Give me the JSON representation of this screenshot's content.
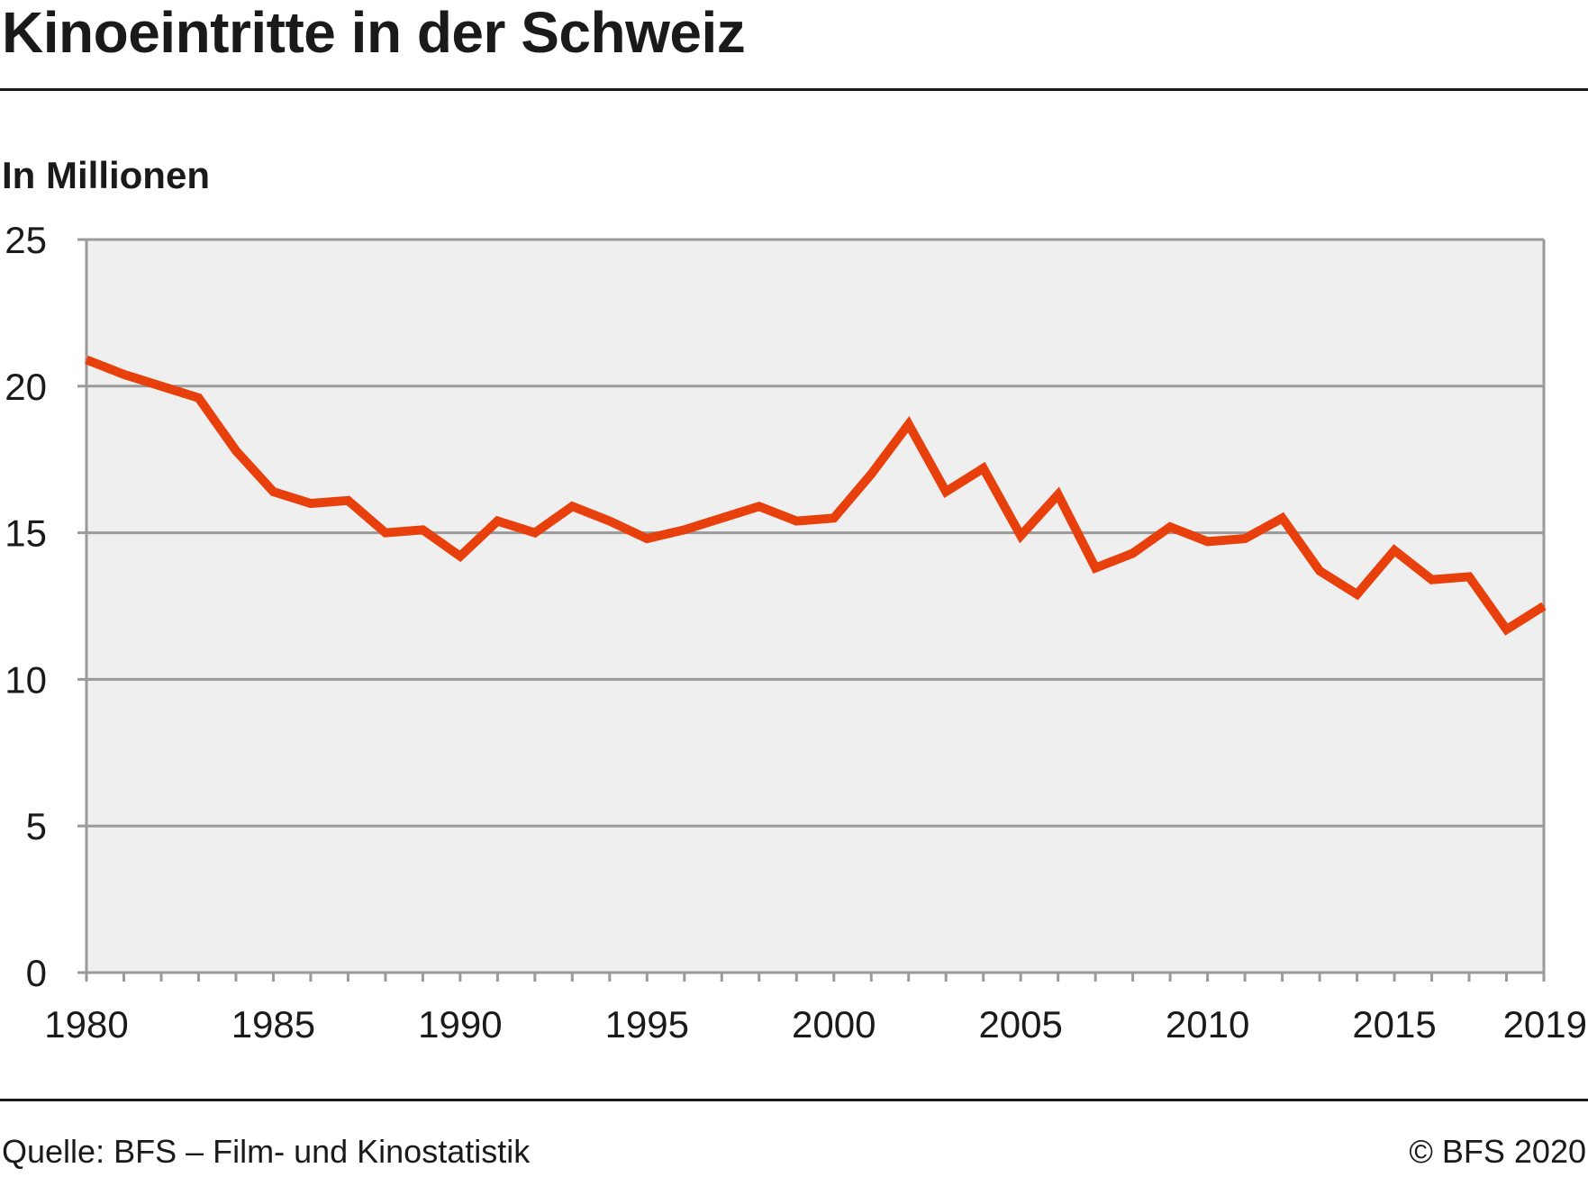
{
  "header": {
    "title": "Kinoeintritte in der Schweiz",
    "unit_label": "In Millionen"
  },
  "footer": {
    "source": "Quelle: BFS – Film- und Kinostatistik",
    "copyright": "© BFS 2020"
  },
  "colors": {
    "line": "#e8400c",
    "plot_background": "#efefef",
    "grid": "#9a9a9a",
    "text": "#1a1a1a"
  },
  "chart_data": {
    "type": "line",
    "title": "Kinoeintritte in der Schweiz",
    "ylabel": "In Millionen",
    "xlabel": "",
    "xlim": [
      1980,
      2019
    ],
    "ylim": [
      0,
      25
    ],
    "grid": true,
    "x_ticks": [
      1980,
      1985,
      1990,
      1995,
      2000,
      2005,
      2010,
      2015,
      2019
    ],
    "y_ticks": [
      0,
      5,
      10,
      15,
      20,
      25
    ],
    "x": [
      1980,
      1981,
      1982,
      1983,
      1984,
      1985,
      1986,
      1987,
      1988,
      1989,
      1990,
      1991,
      1992,
      1993,
      1994,
      1995,
      1996,
      1997,
      1998,
      1999,
      2000,
      2001,
      2002,
      2003,
      2004,
      2005,
      2006,
      2007,
      2008,
      2009,
      2010,
      2011,
      2012,
      2013,
      2014,
      2015,
      2016,
      2017,
      2018,
      2019
    ],
    "series": [
      {
        "values": [
          20.9,
          20.4,
          20.0,
          19.6,
          17.8,
          16.4,
          16.0,
          16.1,
          15.0,
          15.1,
          14.2,
          15.4,
          15.0,
          15.9,
          15.4,
          14.8,
          15.1,
          15.5,
          15.9,
          15.4,
          15.5,
          17.0,
          18.7,
          16.4,
          17.2,
          14.9,
          16.3,
          13.8,
          14.3,
          15.2,
          14.7,
          14.8,
          15.5,
          13.7,
          12.9,
          14.4,
          13.4,
          13.5,
          11.7,
          12.5
        ]
      }
    ]
  }
}
